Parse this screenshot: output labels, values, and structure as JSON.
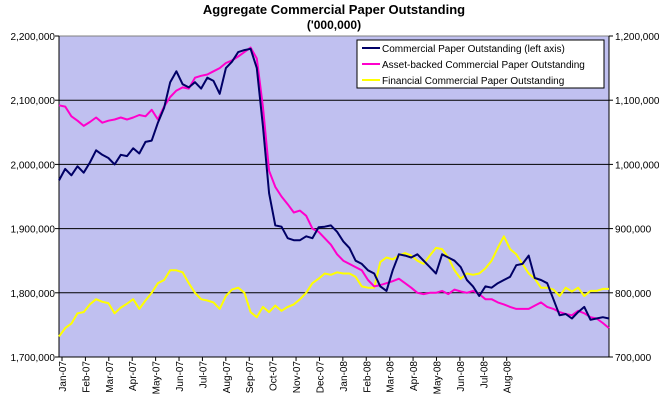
{
  "chart_data": {
    "type": "line",
    "title": "Aggregate Commercial Paper Outstanding",
    "subtitle": "('000,000)",
    "grid": true,
    "legend_position": "top-right",
    "colors": {
      "plot_background": "#c0c0f0",
      "gridline": "#000000",
      "axis": "#000000"
    },
    "x_labels": [
      "Jan-07",
      "Feb-07",
      "Mar-07",
      "Apr-07",
      "May-07",
      "Jun-07",
      "Jul-07",
      "Aug-07",
      "Sep-07",
      "Oct-07",
      "Nov-07",
      "Dec-07",
      "Jan-08",
      "Feb-08",
      "Mar-08",
      "Apr-08",
      "May-08",
      "Jun-08",
      "Jul-08",
      "Aug-08"
    ],
    "left_axis": {
      "ylim": [
        1700000,
        2200000
      ],
      "tick_labels": [
        "1,700,000",
        "1,800,000",
        "1,900,000",
        "2,000,000",
        "2,100,000",
        "2,200,000"
      ]
    },
    "right_axis": {
      "ylim": [
        700000,
        1200000
      ],
      "tick_labels": [
        "700,000",
        "800,000",
        "900,000",
        "1,000,000",
        "1,100,000",
        "1,200,000"
      ]
    },
    "series": [
      {
        "name": "Commercial Paper Outstanding (left axis)",
        "axis": "left",
        "color": "#000066",
        "values": [
          1975000,
          1993000,
          1983000,
          1997000,
          1987000,
          2003000,
          2022000,
          2015000,
          2010000,
          2000000,
          2015000,
          2013000,
          2025000,
          2017000,
          2035000,
          2037000,
          2065000,
          2088000,
          2128000,
          2145000,
          2125000,
          2120000,
          2128000,
          2118000,
          2135000,
          2130000,
          2110000,
          2150000,
          2160000,
          2175000,
          2178000,
          2180000,
          2150000,
          2060000,
          1955000,
          1905000,
          1903000,
          1885000,
          1882000,
          1882000,
          1888000,
          1885000,
          1902000,
          1903000,
          1905000,
          1895000,
          1880000,
          1870000,
          1850000,
          1845000,
          1835000,
          1830000,
          1810000,
          1803000,
          1835000,
          1860000,
          1858000,
          1855000,
          1860000,
          1850000,
          1840000,
          1830000,
          1860000,
          1855000,
          1850000,
          1840000,
          1820000,
          1810000,
          1795000,
          1810000,
          1808000,
          1815000,
          1820000,
          1825000,
          1843000,
          1845000,
          1858000,
          1823000,
          1820000,
          1815000,
          1790000,
          1765000,
          1767000,
          1760000,
          1770000,
          1778000,
          1758000,
          1760000,
          1762000,
          1760000
        ]
      },
      {
        "name": "Asset-backed Commercial Paper Outstanding",
        "axis": "right",
        "color": "#ff00cc",
        "values": [
          1092000,
          1090000,
          1075000,
          1068000,
          1060000,
          1066000,
          1073000,
          1065000,
          1068000,
          1070000,
          1073000,
          1070000,
          1073000,
          1077000,
          1075000,
          1085000,
          1070000,
          1090000,
          1105000,
          1115000,
          1120000,
          1118000,
          1135000,
          1138000,
          1140000,
          1145000,
          1150000,
          1158000,
          1162000,
          1168000,
          1175000,
          1182000,
          1165000,
          1090000,
          990000,
          965000,
          950000,
          938000,
          925000,
          928000,
          920000,
          900000,
          895000,
          885000,
          875000,
          860000,
          850000,
          845000,
          840000,
          835000,
          820000,
          810000,
          812000,
          815000,
          818000,
          822000,
          815000,
          808000,
          800000,
          798000,
          800000,
          800000,
          803000,
          798000,
          805000,
          802000,
          800000,
          803000,
          798000,
          790000,
          790000,
          785000,
          782000,
          778000,
          775000,
          775000,
          775000,
          780000,
          785000,
          778000,
          775000,
          770000,
          767000,
          765000,
          772000,
          768000,
          762000,
          760000,
          753000,
          745000
        ]
      },
      {
        "name": "Financial Commercial Paper Outstanding",
        "axis": "right",
        "color": "#ffff00",
        "values": [
          732000,
          745000,
          752000,
          768000,
          770000,
          782000,
          790000,
          786000,
          784000,
          768000,
          777000,
          783000,
          790000,
          775000,
          788000,
          800000,
          815000,
          820000,
          835000,
          835000,
          832000,
          815000,
          800000,
          790000,
          788000,
          785000,
          775000,
          795000,
          805000,
          808000,
          800000,
          770000,
          762000,
          778000,
          770000,
          780000,
          772000,
          778000,
          782000,
          790000,
          800000,
          815000,
          822000,
          830000,
          828000,
          832000,
          830000,
          830000,
          825000,
          810000,
          808000,
          808000,
          848000,
          855000,
          852000,
          858000,
          862000,
          858000,
          850000,
          845000,
          858000,
          870000,
          868000,
          855000,
          835000,
          822000,
          830000,
          828000,
          830000,
          838000,
          850000,
          870000,
          888000,
          868000,
          860000,
          845000,
          830000,
          822000,
          808000,
          808000,
          805000,
          795000,
          808000,
          802000,
          808000,
          795000,
          803000,
          803000,
          806000,
          806000
        ]
      }
    ]
  }
}
